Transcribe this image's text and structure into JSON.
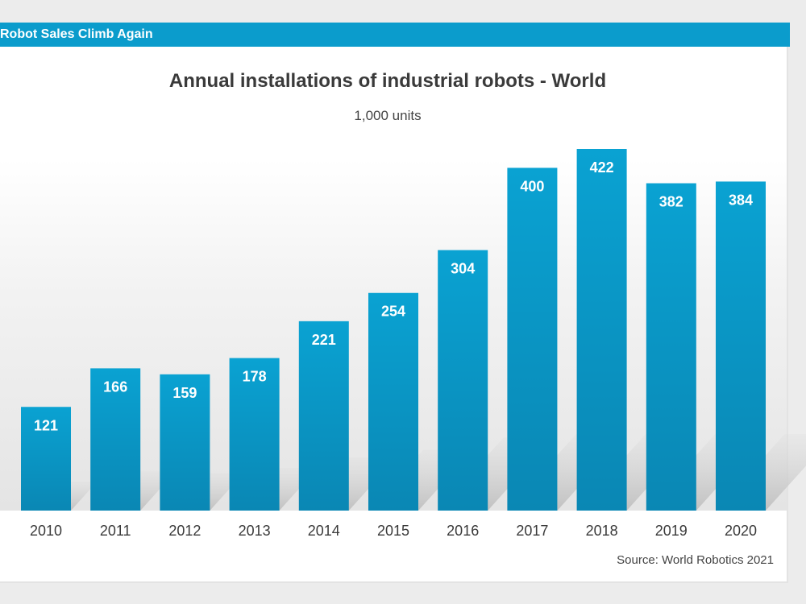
{
  "banner": {
    "title": "Robot Sales Climb Again"
  },
  "colors": {
    "accent": "#0b9ccc",
    "bar": "#0a96c6",
    "text": "#3a3a3a"
  },
  "chart_data": {
    "type": "bar",
    "title": "Annual installations of industrial robots - World",
    "subtitle": "1,000 units",
    "categories": [
      "2010",
      "2011",
      "2012",
      "2013",
      "2014",
      "2015",
      "2016",
      "2017",
      "2018",
      "2019",
      "2020"
    ],
    "values": [
      121,
      166,
      159,
      178,
      221,
      254,
      304,
      400,
      422,
      382,
      384
    ],
    "ylim": [
      0,
      422
    ],
    "grid": false,
    "legend": "none",
    "source": "Source: World Robotics 2021"
  }
}
